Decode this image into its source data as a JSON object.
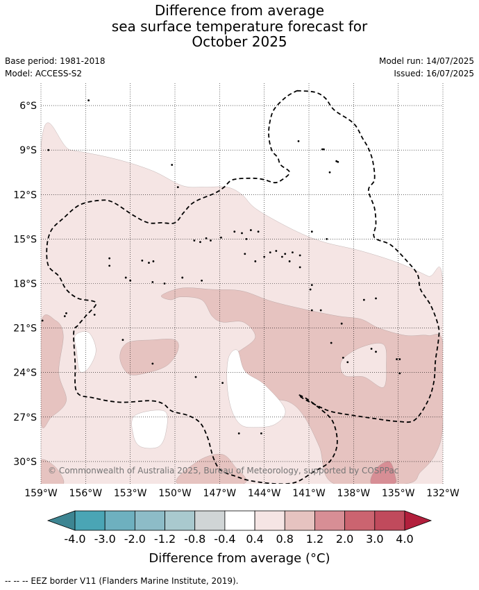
{
  "header": {
    "title_lines": [
      "Difference from average",
      "sea surface temperature forecast for",
      "October 2025"
    ],
    "base_period": "Base period: 1981-2018",
    "model": "Model: ACCESS-S2",
    "model_run": "Model run: 14/07/2025",
    "issued": "Issued: 16/07/2025"
  },
  "map": {
    "copyright": "© Commonwealth of Australia 2025, Bureau of Meteorology, supported by COSPPac"
  },
  "footer": {
    "eez_note": "--  --  -- EEZ border V11 (Flanders Marine Institute, 2019)."
  },
  "chart_data": {
    "type": "heatmap",
    "title": "Difference from average sea surface temperature forecast for October 2025",
    "xlabel": "",
    "ylabel": "",
    "xlim": [
      -159,
      -132
    ],
    "ylim": [
      -31.5,
      -4.5
    ],
    "x_ticks": [
      -159,
      -156,
      -153,
      -150,
      -147,
      -144,
      -141,
      -138,
      -135,
      -132
    ],
    "x_tick_labels": [
      "159°W",
      "156°W",
      "153°W",
      "150°W",
      "147°W",
      "144°W",
      "141°W",
      "138°W",
      "135°W",
      "132°W"
    ],
    "y_ticks": [
      -6,
      -9,
      -12,
      -15,
      -18,
      -21,
      -24,
      -27,
      -30
    ],
    "y_tick_labels": [
      "6°S",
      "9°S",
      "12°S",
      "15°S",
      "18°S",
      "21°S",
      "24°S",
      "27°S",
      "30°S"
    ],
    "grid": true,
    "colorbar": {
      "label": "Difference from average (°C)",
      "ticks": [
        "-4.0",
        "-3.0",
        "-2.0",
        "-1.2",
        "-0.8",
        "-0.4",
        "0.4",
        "0.8",
        "1.2",
        "2.0",
        "3.0",
        "4.0"
      ],
      "colors": [
        "#3d8592",
        "#4aa5b5",
        "#6eb0bf",
        "#8dbcc7",
        "#a9c9ce",
        "#d0d5d6",
        "#ffffff",
        "#f5e5e4",
        "#e6c3c0",
        "#d78e95",
        "#cb6470",
        "#c04a5c",
        "#b21f3c"
      ]
    },
    "regions": [
      {
        "level": "0.4 to 0.8",
        "color": "#f5e5e4",
        "points": [
          [
            -159,
            -8.8
          ],
          [
            -157,
            -9.0
          ],
          [
            -154,
            -9.6
          ],
          [
            -151.5,
            -10.4
          ],
          [
            -149.5,
            -11.4
          ],
          [
            -148,
            -11.5
          ],
          [
            -146.5,
            -11.5
          ],
          [
            -145.5,
            -12
          ],
          [
            -144.5,
            -13.0
          ],
          [
            -142,
            -14.4
          ],
          [
            -140,
            -15.2
          ],
          [
            -137.5,
            -15.8
          ],
          [
            -135,
            -16.6
          ],
          [
            -133,
            -17.5
          ],
          [
            -132,
            -18
          ],
          [
            -132,
            -31.5
          ],
          [
            -159,
            -31.5
          ]
        ]
      },
      {
        "level": "0.8 to 1.2",
        "color": "#e6c3c0",
        "points": [
          [
            -150.9,
            -18.8
          ],
          [
            -149.5,
            -18.3
          ],
          [
            -147.5,
            -18.4
          ],
          [
            -145.5,
            -18.5
          ],
          [
            -143.5,
            -19.2
          ],
          [
            -141,
            -19.8
          ],
          [
            -139,
            -20.2
          ],
          [
            -137.5,
            -20.4
          ],
          [
            -136.3,
            -21.0
          ],
          [
            -134.5,
            -21.5
          ],
          [
            -133,
            -21.5
          ],
          [
            -132,
            -22
          ],
          [
            -132,
            -27.5
          ],
          [
            -132.5,
            -29.5
          ],
          [
            -133.5,
            -30.7
          ],
          [
            -134.5,
            -31.5
          ],
          [
            -139.3,
            -31.5
          ],
          [
            -140.3,
            -29
          ],
          [
            -141.3,
            -27
          ],
          [
            -142.3,
            -26
          ],
          [
            -143.8,
            -25.7
          ],
          [
            -144.8,
            -25.0
          ],
          [
            -146.2,
            -23.9
          ],
          [
            -146.3,
            -22.8
          ],
          [
            -145.6,
            -22.5
          ],
          [
            -144.6,
            -21.6
          ],
          [
            -145.4,
            -20.6
          ],
          [
            -146.8,
            -20.6
          ],
          [
            -147.5,
            -20.2
          ],
          [
            -148.2,
            -19.1
          ],
          [
            -149.6,
            -18.9
          ],
          [
            -150.3,
            -19.1
          ]
        ]
      },
      {
        "level": "0.8 to 1.2",
        "color": "#e6c3c0",
        "points": [
          [
            -153.2,
            -22.0
          ],
          [
            -151.5,
            -21.8
          ],
          [
            -150.0,
            -21.8
          ],
          [
            -149.8,
            -22.5
          ],
          [
            -150.5,
            -23.5
          ],
          [
            -151.8,
            -24.0
          ],
          [
            -153.1,
            -24.1
          ],
          [
            -153.7,
            -23.0
          ]
        ]
      },
      {
        "level": "0.8 to 1.2",
        "color": "#e6c3c0",
        "points": [
          [
            -159,
            -20.7
          ],
          [
            -158.0,
            -20.5
          ],
          [
            -157.5,
            -21.5
          ],
          [
            -157.8,
            -24.0
          ],
          [
            -157.3,
            -25.9
          ],
          [
            -158.3,
            -27.0
          ],
          [
            -159,
            -27.3
          ]
        ]
      },
      {
        "level": "0.8 to 1.2",
        "color": "#e6c3c0",
        "points": [
          [
            -159,
            -29.9
          ],
          [
            -158.0,
            -30.4
          ],
          [
            -157.5,
            -31.5
          ],
          [
            -159,
            -31.5
          ]
        ]
      },
      {
        "level": "0.8 to 1.2",
        "color": "#e6c3c0",
        "points": [
          [
            -149.8,
            -31.5
          ],
          [
            -148.5,
            -30.0
          ],
          [
            -146.9,
            -29.5
          ],
          [
            -146.0,
            -30.3
          ],
          [
            -145.4,
            -31.5
          ]
        ]
      },
      {
        "level": "0.4 to 0.8",
        "color": "#f5e5e4",
        "points": [
          [
            -138.8,
            -23.2
          ],
          [
            -137.5,
            -22.3
          ],
          [
            -136.0,
            -22.1
          ],
          [
            -135.8,
            -23.5
          ],
          [
            -136.0,
            -25.0
          ],
          [
            -137.3,
            -24.3
          ],
          [
            -138.6,
            -24.2
          ]
        ]
      },
      {
        "level": "1.2 to 2.0",
        "color": "#d78e95",
        "points": [
          [
            -136.8,
            -31.5
          ],
          [
            -136.5,
            -30.5
          ],
          [
            -135.6,
            -30.0
          ],
          [
            -135.2,
            -31.0
          ],
          [
            -135.3,
            -31.5
          ]
        ]
      },
      {
        "level": "-0.4 to 0.4",
        "color": "#ffffff",
        "points": [
          [
            -156.7,
            -21.5
          ],
          [
            -155.8,
            -21.3
          ],
          [
            -155.3,
            -22.5
          ],
          [
            -155.8,
            -23.7
          ],
          [
            -156.4,
            -23.9
          ],
          [
            -156.6,
            -22.6
          ]
        ]
      },
      {
        "level": "-0.4 to 0.4",
        "color": "#ffffff",
        "points": [
          [
            -146.4,
            -23.0
          ],
          [
            -145.8,
            -22.5
          ],
          [
            -145.3,
            -23.9
          ],
          [
            -144.0,
            -24.8
          ],
          [
            -142.6,
            -26.5
          ],
          [
            -143.3,
            -27.5
          ],
          [
            -144.7,
            -27.7
          ],
          [
            -145.6,
            -27.5
          ],
          [
            -146.2,
            -26.5
          ],
          [
            -146.5,
            -24.8
          ]
        ]
      },
      {
        "level": "-0.4 to 0.4",
        "color": "#ffffff",
        "points": [
          [
            -152.7,
            -26.9
          ],
          [
            -150.7,
            -26.6
          ],
          [
            -150.6,
            -28.0
          ],
          [
            -151.1,
            -29.0
          ],
          [
            -152.3,
            -29.0
          ],
          [
            -152.8,
            -28.2
          ]
        ]
      }
    ],
    "eez_border": [
      [
        -141.8,
        -5.0
      ],
      [
        -140.6,
        -5.1
      ],
      [
        -139.9,
        -5.5
      ],
      [
        -139.3,
        -6.3
      ],
      [
        -138.0,
        -7.2
      ],
      [
        -137.4,
        -8.2
      ],
      [
        -137.0,
        -8.9
      ],
      [
        -136.7,
        -9.8
      ],
      [
        -136.6,
        -11.0
      ],
      [
        -137.0,
        -11.7
      ],
      [
        -136.6,
        -12.9
      ],
      [
        -136.5,
        -14.0
      ],
      [
        -136.6,
        -14.9
      ],
      [
        -135.5,
        -15.4
      ],
      [
        -134.4,
        -16.5
      ],
      [
        -133.7,
        -17.4
      ],
      [
        -133.5,
        -18.4
      ],
      [
        -132.8,
        -19.5
      ],
      [
        -132.3,
        -20.9
      ],
      [
        -132.3,
        -21.8
      ],
      [
        -132.5,
        -23.2
      ],
      [
        -132.6,
        -24.6
      ],
      [
        -133.0,
        -25.9
      ],
      [
        -133.9,
        -27.2
      ],
      [
        -135.0,
        -27.3
      ],
      [
        -136.6,
        -27.1
      ],
      [
        -138.6,
        -26.8
      ],
      [
        -139.6,
        -26.6
      ],
      [
        -140.3,
        -26.3
      ],
      [
        -141.3,
        -25.8
      ],
      [
        -141.7,
        -25.5
      ],
      [
        -141.1,
        -25.8
      ],
      [
        -140.3,
        -26.4
      ],
      [
        -139.4,
        -27.3
      ],
      [
        -139.1,
        -28.8
      ],
      [
        -139.6,
        -30.0
      ],
      [
        -140.7,
        -30.7
      ],
      [
        -141.9,
        -31.4
      ],
      [
        -143.2,
        -31.5
      ],
      [
        -144.9,
        -31.3
      ],
      [
        -145.9,
        -31.0
      ],
      [
        -146.9,
        -30.6
      ],
      [
        -147.4,
        -29.8
      ],
      [
        -147.8,
        -28.4
      ],
      [
        -148.3,
        -27.4
      ],
      [
        -149.1,
        -26.9
      ],
      [
        -150.2,
        -26.6
      ],
      [
        -150.8,
        -26.1
      ],
      [
        -151.7,
        -25.9
      ],
      [
        -153.7,
        -26.0
      ],
      [
        -155.5,
        -25.7
      ],
      [
        -156.6,
        -25.3
      ],
      [
        -156.7,
        -23.4
      ],
      [
        -156.8,
        -21.3
      ],
      [
        -156.5,
        -20.8
      ],
      [
        -156.0,
        -20.2
      ],
      [
        -155.3,
        -19.3
      ],
      [
        -156.5,
        -19.0
      ],
      [
        -157.3,
        -18.4
      ],
      [
        -157.8,
        -17.5
      ],
      [
        -158.5,
        -16.8
      ],
      [
        -158.6,
        -15.5
      ],
      [
        -158.3,
        -14.4
      ],
      [
        -157.5,
        -13.6
      ],
      [
        -156.4,
        -12.7
      ],
      [
        -155.1,
        -12.4
      ],
      [
        -154.2,
        -12.5
      ],
      [
        -152.8,
        -13.4
      ],
      [
        -151.8,
        -13.9
      ],
      [
        -150.9,
        -13.9
      ],
      [
        -150.0,
        -13.9
      ],
      [
        -149.4,
        -13.2
      ],
      [
        -148.7,
        -12.5
      ],
      [
        -147.3,
        -11.9
      ],
      [
        -146.7,
        -11.5
      ],
      [
        -146.1,
        -11.0
      ],
      [
        -144.8,
        -10.9
      ],
      [
        -144.0,
        -11.0
      ],
      [
        -143.3,
        -11.2
      ],
      [
        -142.8,
        -11.0
      ],
      [
        -142.3,
        -10.5
      ],
      [
        -142.9,
        -10.0
      ],
      [
        -143.1,
        -9.5
      ],
      [
        -143.5,
        -9.0
      ],
      [
        -143.7,
        -8.0
      ],
      [
        -143.6,
        -7.0
      ],
      [
        -143.3,
        -6.2
      ],
      [
        -142.5,
        -5.4
      ],
      [
        -141.8,
        -5.0
      ]
    ],
    "islands": [
      [
        -140.1,
        -8.95
      ],
      [
        -140.0,
        -8.95
      ],
      [
        -139.15,
        -9.75
      ],
      [
        -139.05,
        -9.8
      ],
      [
        -141.7,
        -8.4
      ],
      [
        -139.6,
        -10.5
      ],
      [
        -151.75,
        -16.6
      ],
      [
        -151.45,
        -16.5
      ],
      [
        -152.2,
        -16.45
      ],
      [
        -149.5,
        -17.6
      ],
      [
        -146.0,
        -14.5
      ],
      [
        -145.5,
        -14.6
      ],
      [
        -145.2,
        -15.0
      ],
      [
        -144.9,
        -14.4
      ],
      [
        -144.4,
        -14.5
      ],
      [
        -143.2,
        -15.8
      ],
      [
        -142.6,
        -16.0
      ],
      [
        -142.3,
        -16.5
      ],
      [
        -142.8,
        -16.2
      ],
      [
        -143.6,
        -15.9
      ],
      [
        -144.0,
        -16.2
      ],
      [
        -144.6,
        -16.5
      ],
      [
        -145.3,
        -16.0
      ],
      [
        -146.9,
        -14.9
      ],
      [
        -147.6,
        -15.1
      ],
      [
        -147.9,
        -14.95
      ],
      [
        -148.3,
        -15.2
      ],
      [
        -148.7,
        -15.1
      ],
      [
        -140.8,
        -18.1
      ],
      [
        -140.9,
        -18.4
      ],
      [
        -138.8,
        -20.7
      ],
      [
        -140.2,
        -19.8
      ],
      [
        -140.8,
        -19.8
      ],
      [
        -139.5,
        -22.0
      ],
      [
        -136.8,
        -22.4
      ],
      [
        -136.5,
        -22.6
      ],
      [
        -135.1,
        -23.1
      ],
      [
        -134.9,
        -23.1
      ],
      [
        -134.9,
        -24.05
      ],
      [
        -138.7,
        -23.0
      ],
      [
        -138.4,
        -23.3
      ],
      [
        -137.3,
        -19.1
      ],
      [
        -136.5,
        -19.0
      ],
      [
        -155.8,
        -5.65
      ],
      [
        -158.5,
        -9.0
      ],
      [
        -158.9,
        -20.5
      ],
      [
        -157.3,
        -20.0
      ],
      [
        -157.4,
        -20.2
      ],
      [
        -150.2,
        -10.0
      ],
      [
        -149.8,
        -11.5
      ],
      [
        -154.4,
        -16.3
      ],
      [
        -154.4,
        -16.8
      ],
      [
        -153.3,
        -17.6
      ],
      [
        -151.5,
        -17.9
      ],
      [
        -150.7,
        -18.0
      ],
      [
        -153.5,
        -21.8
      ],
      [
        -151.5,
        -23.4
      ],
      [
        -148.6,
        -24.3
      ],
      [
        -146.8,
        -24.7
      ],
      [
        -155.4,
        -20.1
      ],
      [
        -153.0,
        -17.8
      ],
      [
        -148.2,
        -17.8
      ],
      [
        -144.2,
        -28.1
      ],
      [
        -145.7,
        -28.1
      ],
      [
        -142.1,
        -15.9
      ],
      [
        -141.6,
        -16.9
      ],
      [
        -139.8,
        -15.0
      ],
      [
        -140.8,
        -14.5
      ],
      [
        -141.6,
        -16.1
      ]
    ],
    "copyright": "© Commonwealth of Australia 2025, Bureau of Meteorology, supported by COSPPac"
  }
}
